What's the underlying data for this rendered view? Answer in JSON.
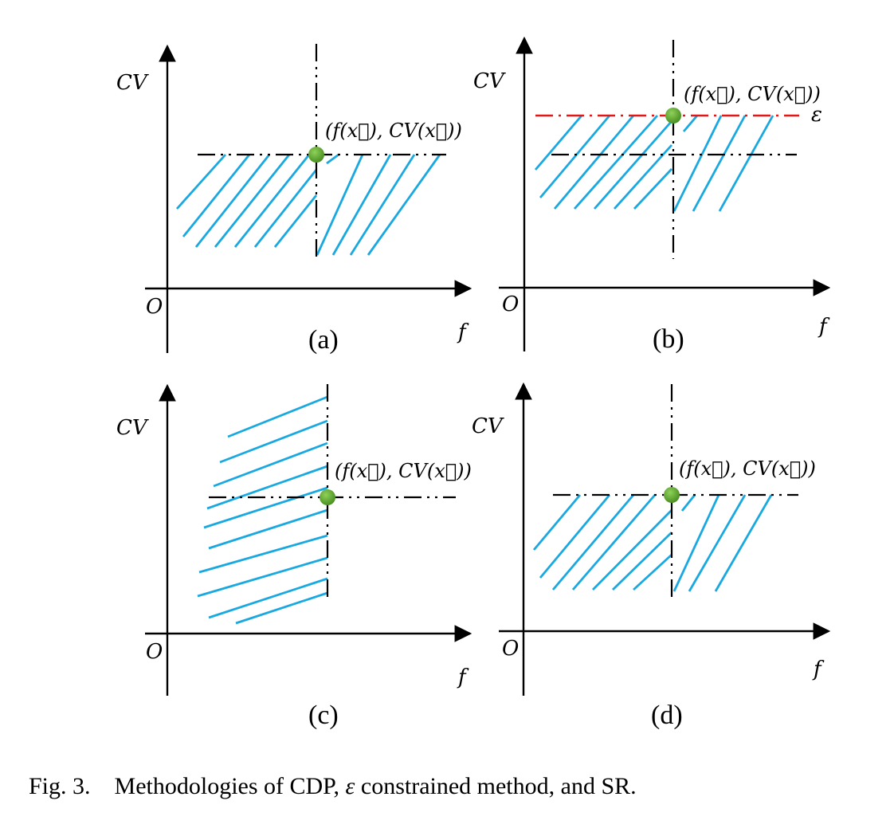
{
  "caption": {
    "prefix": "Fig. 3.",
    "text_before": "Methodologies of CDP,",
    "epsilon": "ε",
    "text_after": "constrained method, and SR."
  },
  "panels": [
    {
      "id": "a",
      "label": "(a)",
      "y_axis": "CV",
      "x_axis": "f",
      "origin": "O",
      "point_label": "(f(x⃗), CV(x⃗))"
    },
    {
      "id": "b",
      "label": "(b)",
      "y_axis": "CV",
      "x_axis": "f",
      "origin": "O",
      "point_label": "(f(x⃗), CV(x⃗))",
      "threshold_label": "ε"
    },
    {
      "id": "c",
      "label": "(c)",
      "y_axis": "CV",
      "x_axis": "f",
      "origin": "O",
      "point_label": "(f(x⃗), CV(x⃗))"
    },
    {
      "id": "d",
      "label": "(d)",
      "y_axis": "CV",
      "x_axis": "f",
      "origin": "O",
      "point_label": "(f(x⃗), CV(x⃗))"
    }
  ],
  "colors": {
    "hatch": "#19a9e0",
    "point": "#5aa02c",
    "threshold": "#e01818",
    "axis": "#000000"
  }
}
